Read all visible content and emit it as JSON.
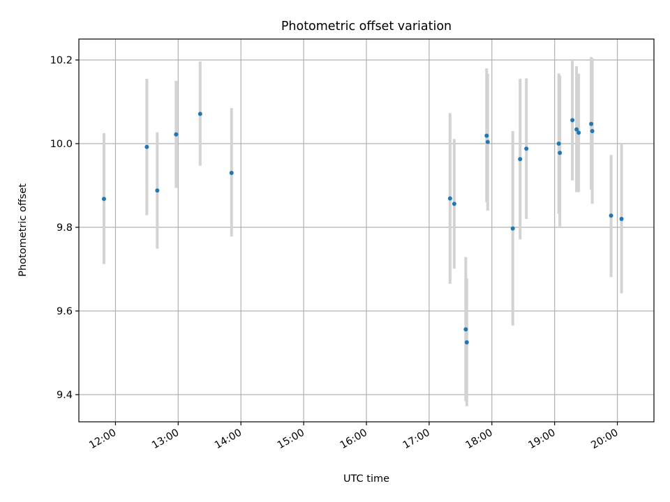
{
  "chart_data": {
    "type": "scatter",
    "title": "Photometric offset variation",
    "xlabel": "UTC time",
    "ylabel": "Photometric offset",
    "x_axis_type": "time",
    "xlim": [
      "11:25",
      "20:35"
    ],
    "ylim": [
      9.335,
      10.25
    ],
    "xticks": [
      "12:00",
      "13:00",
      "14:00",
      "15:00",
      "16:00",
      "17:00",
      "18:00",
      "19:00",
      "20:00"
    ],
    "yticks": [
      9.4,
      9.6,
      9.8,
      10.0,
      10.2
    ],
    "ytick_labels": [
      "9.4",
      "9.6",
      "9.8",
      "10.0",
      "10.2"
    ],
    "grid": true,
    "marker_color": "#1f77b4",
    "errorbar_color": "#d3d3d3",
    "points": [
      {
        "x": "11:49",
        "y": 9.868,
        "ylow": 9.712,
        "yhigh": 10.025
      },
      {
        "x": "12:30",
        "y": 9.992,
        "ylow": 9.829,
        "yhigh": 10.155
      },
      {
        "x": "12:40",
        "y": 9.888,
        "ylow": 9.749,
        "yhigh": 10.027
      },
      {
        "x": "12:58",
        "y": 10.022,
        "ylow": 9.894,
        "yhigh": 10.15
      },
      {
        "x": "13:21",
        "y": 10.071,
        "ylow": 9.947,
        "yhigh": 10.196
      },
      {
        "x": "13:51",
        "y": 9.93,
        "ylow": 9.778,
        "yhigh": 10.085
      },
      {
        "x": "17:20",
        "y": 9.869,
        "ylow": 9.665,
        "yhigh": 10.073
      },
      {
        "x": "17:24",
        "y": 9.856,
        "ylow": 9.701,
        "yhigh": 10.011
      },
      {
        "x": "17:35",
        "y": 9.556,
        "ylow": 9.385,
        "yhigh": 9.729
      },
      {
        "x": "17:36",
        "y": 9.525,
        "ylow": 9.372,
        "yhigh": 9.678
      },
      {
        "x": "17:55",
        "y": 10.019,
        "ylow": 9.86,
        "yhigh": 10.18
      },
      {
        "x": "17:56",
        "y": 10.004,
        "ylow": 9.84,
        "yhigh": 10.167
      },
      {
        "x": "18:20",
        "y": 9.797,
        "ylow": 9.565,
        "yhigh": 10.03
      },
      {
        "x": "18:27",
        "y": 9.963,
        "ylow": 9.771,
        "yhigh": 10.155
      },
      {
        "x": "18:33",
        "y": 9.988,
        "ylow": 9.82,
        "yhigh": 10.156
      },
      {
        "x": "19:04",
        "y": 10.0,
        "ylow": 9.832,
        "yhigh": 10.168
      },
      {
        "x": "19:05",
        "y": 9.978,
        "ylow": 9.802,
        "yhigh": 10.163
      },
      {
        "x": "19:17",
        "y": 10.056,
        "ylow": 9.912,
        "yhigh": 10.198
      },
      {
        "x": "19:21",
        "y": 10.034,
        "ylow": 9.884,
        "yhigh": 10.185
      },
      {
        "x": "19:23",
        "y": 10.026,
        "ylow": 9.884,
        "yhigh": 10.167
      },
      {
        "x": "19:35",
        "y": 10.047,
        "ylow": 9.89,
        "yhigh": 10.207
      },
      {
        "x": "19:36",
        "y": 10.03,
        "ylow": 9.856,
        "yhigh": 10.204
      },
      {
        "x": "19:54",
        "y": 9.828,
        "ylow": 9.681,
        "yhigh": 9.973
      },
      {
        "x": "20:04",
        "y": 9.82,
        "ylow": 9.642,
        "yhigh": 10.0
      }
    ]
  }
}
